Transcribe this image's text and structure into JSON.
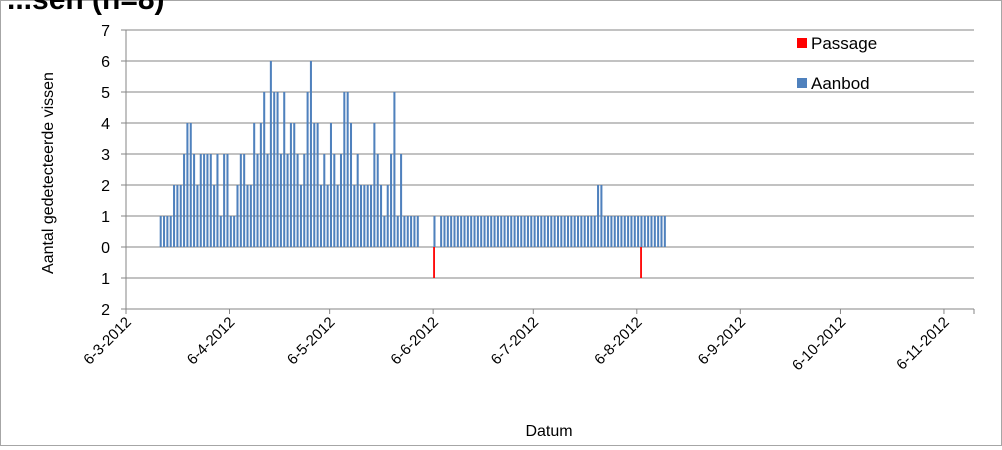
{
  "chart_data": {
    "type": "bar",
    "title": "...sen (n=8)",
    "xlabel": "Datum",
    "ylabel": "Aantal gedetecteerde vissen",
    "y_tick_labels": [
      "2",
      "1",
      "0",
      "1",
      "2",
      "3",
      "4",
      "5",
      "6",
      "7"
    ],
    "y_tick_values": [
      -2,
      -1,
      0,
      1,
      2,
      3,
      4,
      5,
      6,
      7
    ],
    "ylim": [
      -2,
      7
    ],
    "x_range": [
      "2012-03-06",
      "2012-11-15"
    ],
    "x_tick_labels": [
      "6-3-2012",
      "6-4-2012",
      "6-5-2012",
      "6-6-2012",
      "6-7-2012",
      "6-8-2012",
      "6-9-2012",
      "6-10-2012",
      "6-11-2012"
    ],
    "x_tick_dates": [
      "2012-03-06",
      "2012-04-06",
      "2012-05-06",
      "2012-06-06",
      "2012-07-06",
      "2012-08-06",
      "2012-09-06",
      "2012-10-06",
      "2012-11-06"
    ],
    "grid": "horizontal",
    "legend_position": "top-right",
    "colors": {
      "Passage": "#ff0000",
      "Aanbod": "#4f81bd"
    },
    "series": [
      {
        "name": "Passage",
        "dates": [
          "2012-06-06",
          "2012-08-07"
        ],
        "values": [
          -1,
          -1
        ]
      },
      {
        "name": "Aanbod",
        "start_date": "2012-03-16",
        "values": [
          1,
          1,
          1,
          1,
          2,
          2,
          2,
          3,
          4,
          4,
          3,
          2,
          3,
          3,
          3,
          3,
          2,
          3,
          1,
          3,
          3,
          1,
          1,
          2,
          3,
          3,
          2,
          2,
          4,
          3,
          4,
          5,
          3,
          6,
          5,
          5,
          3,
          5,
          3,
          4,
          4,
          3,
          2,
          3,
          5,
          6,
          4,
          4,
          2,
          3,
          2,
          4,
          3,
          2,
          3,
          5,
          5,
          4,
          2,
          3,
          2,
          2,
          2,
          2,
          4,
          3,
          2,
          1,
          2,
          3,
          5,
          1,
          3,
          1,
          1,
          1,
          1,
          1,
          0,
          0,
          0,
          0,
          1,
          0,
          1,
          1,
          1,
          1,
          1,
          1,
          1,
          1,
          1,
          1,
          1,
          1,
          1,
          1,
          1,
          1,
          1,
          1,
          1,
          1,
          1,
          1,
          1,
          1,
          1,
          1,
          1,
          1,
          1,
          1,
          1,
          1,
          1,
          1,
          1,
          1,
          1,
          1,
          1,
          1,
          1,
          1,
          1,
          1,
          1,
          1,
          1,
          2,
          2,
          1,
          1,
          1,
          1,
          1,
          1,
          1,
          1,
          1,
          1,
          1,
          1,
          1,
          1,
          1,
          1,
          1,
          1,
          1
        ]
      }
    ]
  }
}
